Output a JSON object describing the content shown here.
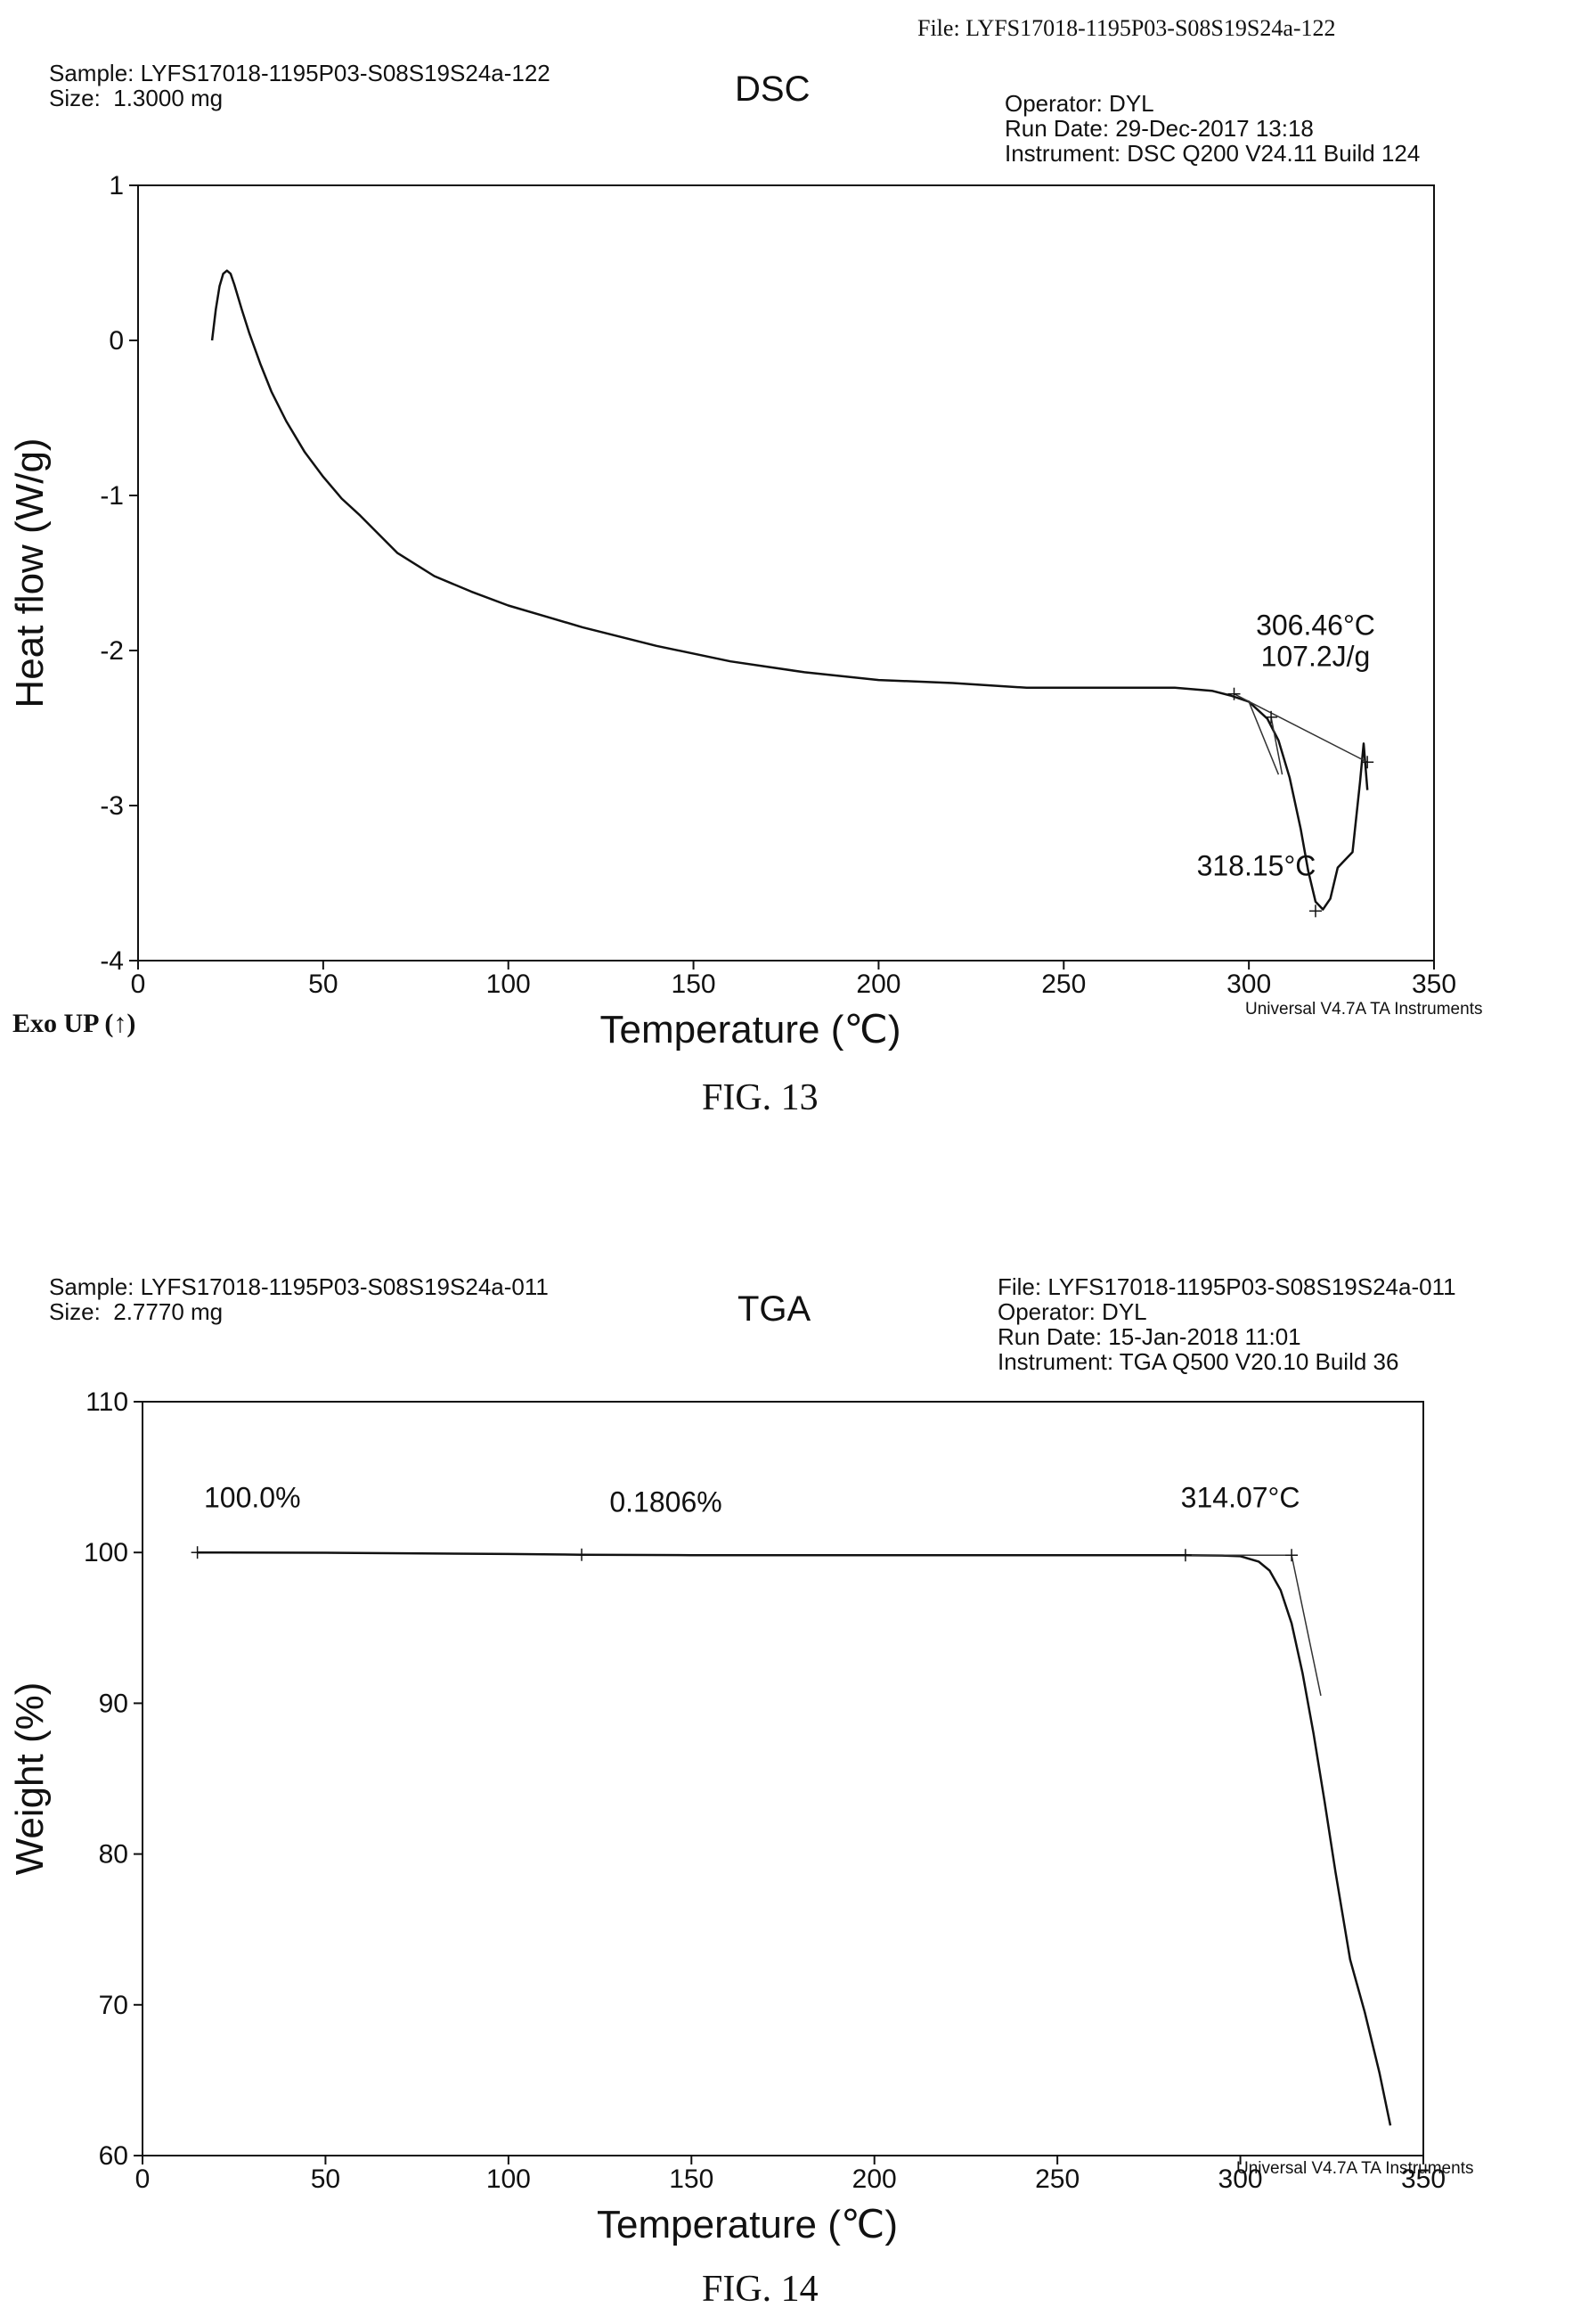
{
  "chart_data": [
    {
      "type": "line",
      "title": "DSC",
      "figure_label": "FIG. 13",
      "header_left": [
        "Sample: LYFS17018-1195P03-S08S19S24a-122",
        "Size:  1.3000 mg"
      ],
      "header_right": [
        "File: LYFS17018-1195P03-S08S19S24a-122",
        "Operator: DYL",
        "Run Date: 29-Dec-2017 13:18",
        "Instrument: DSC Q200 V24.11 Build 124"
      ],
      "xlabel": "Temperature (℃)",
      "ylabel": "Heat flow (W/g)",
      "xlim": [
        0,
        350
      ],
      "ylim": [
        -4,
        1
      ],
      "xticks": [
        0,
        50,
        100,
        150,
        200,
        250,
        300,
        350
      ],
      "yticks": [
        1,
        0,
        -1,
        -2,
        -3,
        -4
      ],
      "corner_note": "Exo UP (↑)",
      "footer": "Universal V4.7A TA Instruments",
      "series": [
        {
          "x": [
            20,
            21,
            22,
            23,
            24,
            25,
            26,
            28,
            30,
            33,
            36,
            40,
            45,
            50,
            55,
            60,
            70,
            80,
            90,
            100,
            110,
            120,
            140,
            160,
            180,
            200,
            220,
            240,
            260,
            280,
            285,
            290,
            295,
            300,
            305,
            308,
            311,
            314,
            316,
            318,
            320,
            322,
            324,
            326,
            328,
            330,
            331,
            332
          ],
          "y": [
            0,
            0.2,
            0.35,
            0.43,
            0.45,
            0.43,
            0.36,
            0.2,
            0.05,
            -0.15,
            -0.33,
            -0.52,
            -0.72,
            -0.88,
            -1.02,
            -1.13,
            -1.37,
            -1.52,
            -1.62,
            -1.71,
            -1.78,
            -1.85,
            -1.97,
            -2.07,
            -2.14,
            -2.19,
            -2.21,
            -2.24,
            -2.24,
            -2.24,
            -2.25,
            -2.26,
            -2.29,
            -2.33,
            -2.44,
            -2.58,
            -2.82,
            -3.15,
            -3.42,
            -3.62,
            -3.67,
            -3.6,
            -3.4,
            -3.35,
            -3.3,
            -2.85,
            -2.6,
            -2.9
          ]
        }
      ],
      "annotations": [
        {
          "text": "306.46°C",
          "x": 318,
          "y": -1.9
        },
        {
          "text": "107.2J/g",
          "x": 318,
          "y": -2.1
        },
        {
          "text": "318.15°C",
          "x": 302,
          "y": -3.45
        }
      ]
    },
    {
      "type": "line",
      "title": "TGA",
      "figure_label": "FIG. 14",
      "header_left": [
        "Sample: LYFS17018-1195P03-S08S19S24a-011",
        "Size:  2.7770 mg"
      ],
      "header_right": [
        "File: LYFS17018-1195P03-S08S19S24a-011",
        "Operator: DYL",
        "Run Date: 15-Jan-2018 11:01",
        "Instrument: TGA Q500 V20.10 Build 36"
      ],
      "xlabel": "Temperature (℃)",
      "ylabel": "Weight  (%)",
      "xlim": [
        0,
        350
      ],
      "ylim": [
        60,
        110
      ],
      "xticks": [
        0,
        50,
        100,
        150,
        200,
        250,
        300,
        350
      ],
      "yticks": [
        110,
        100,
        90,
        80,
        70,
        60
      ],
      "footer": "Universal V4.7A TA Instruments",
      "series": [
        {
          "x": [
            15,
            50,
            100,
            120,
            150,
            200,
            250,
            285,
            295,
            300,
            305,
            308,
            311,
            314,
            317,
            320,
            323,
            326,
            330,
            334,
            338,
            341
          ],
          "y": [
            100,
            99.98,
            99.9,
            99.85,
            99.82,
            99.82,
            99.82,
            99.82,
            99.8,
            99.75,
            99.4,
            98.8,
            97.5,
            95.3,
            92.0,
            88.0,
            83.5,
            78.8,
            73.0,
            69.5,
            65.5,
            62.0
          ]
        }
      ],
      "annotations": [
        {
          "text": "100.0%",
          "x": 30,
          "y": 103
        },
        {
          "text": "0.1806%",
          "x": 143,
          "y": 102.7
        },
        {
          "text": "314.07°C",
          "x": 300,
          "y": 103
        }
      ]
    }
  ]
}
